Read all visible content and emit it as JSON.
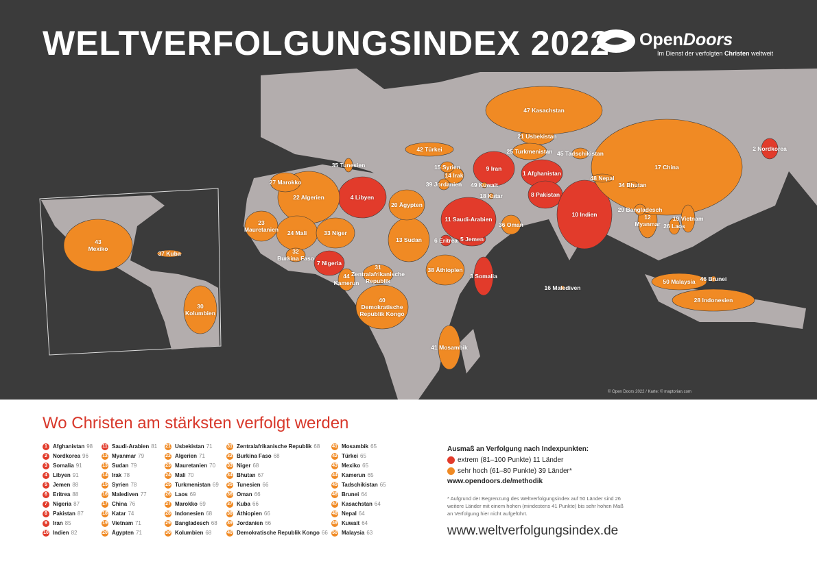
{
  "header": {
    "title": "WELTVERFOLGUNGSINDEX 2022",
    "logo": {
      "open": "Open",
      "doors": "Doors",
      "tagline": [
        "Im Dienst der verfolgten ",
        "Christen",
        " weltweit"
      ]
    }
  },
  "colors": {
    "extreme": "#e23b2b",
    "high": "#f08a24",
    "land": "#b3adad",
    "background": "#3b3b3b"
  },
  "map": {
    "copyright": "© Open Doors 2022 / Karte: © maptorian.com"
  },
  "subtitle": "Wo Christen am stärksten verfolgt werden",
  "ranking": [
    {
      "rank": 1,
      "name": "Afghanistan",
      "score": 98,
      "level": "extreme"
    },
    {
      "rank": 2,
      "name": "Nordkorea",
      "score": 96,
      "level": "extreme"
    },
    {
      "rank": 3,
      "name": "Somalia",
      "score": 91,
      "level": "extreme"
    },
    {
      "rank": 4,
      "name": "Libyen",
      "score": 91,
      "level": "extreme"
    },
    {
      "rank": 5,
      "name": "Jemen",
      "score": 88,
      "level": "extreme"
    },
    {
      "rank": 6,
      "name": "Eritrea",
      "score": 88,
      "level": "extreme"
    },
    {
      "rank": 7,
      "name": "Nigeria",
      "score": 87,
      "level": "extreme"
    },
    {
      "rank": 8,
      "name": "Pakistan",
      "score": 87,
      "level": "extreme"
    },
    {
      "rank": 9,
      "name": "Iran",
      "score": 85,
      "level": "extreme"
    },
    {
      "rank": 10,
      "name": "Indien",
      "score": 82,
      "level": "extreme"
    },
    {
      "rank": 11,
      "name": "Saudi-Arabien",
      "score": 81,
      "level": "extreme"
    },
    {
      "rank": 12,
      "name": "Myanmar",
      "score": 79,
      "level": "high"
    },
    {
      "rank": 13,
      "name": "Sudan",
      "score": 79,
      "level": "high"
    },
    {
      "rank": 14,
      "name": "Irak",
      "score": 78,
      "level": "high"
    },
    {
      "rank": 15,
      "name": "Syrien",
      "score": 78,
      "level": "high"
    },
    {
      "rank": 16,
      "name": "Malediven",
      "score": 77,
      "level": "high"
    },
    {
      "rank": 17,
      "name": "China",
      "score": 76,
      "level": "high"
    },
    {
      "rank": 18,
      "name": "Katar",
      "score": 74,
      "level": "high"
    },
    {
      "rank": 19,
      "name": "Vietnam",
      "score": 71,
      "level": "high"
    },
    {
      "rank": 20,
      "name": "Ägypten",
      "score": 71,
      "level": "high"
    },
    {
      "rank": 21,
      "name": "Usbekistan",
      "score": 71,
      "level": "high"
    },
    {
      "rank": 22,
      "name": "Algerien",
      "score": 71,
      "level": "high"
    },
    {
      "rank": 23,
      "name": "Mauretanien",
      "score": 70,
      "level": "high"
    },
    {
      "rank": 24,
      "name": "Mali",
      "score": 70,
      "level": "high"
    },
    {
      "rank": 25,
      "name": "Turkmenistan",
      "score": 69,
      "level": "high"
    },
    {
      "rank": 26,
      "name": "Laos",
      "score": 69,
      "level": "high"
    },
    {
      "rank": 27,
      "name": "Marokko",
      "score": 69,
      "level": "high"
    },
    {
      "rank": 28,
      "name": "Indonesien",
      "score": 68,
      "level": "high"
    },
    {
      "rank": 29,
      "name": "Bangladesch",
      "score": 68,
      "level": "high"
    },
    {
      "rank": 30,
      "name": "Kolumbien",
      "score": 68,
      "level": "high"
    },
    {
      "rank": 31,
      "name": "Zentralafrikanische Republik",
      "score": 68,
      "level": "high"
    },
    {
      "rank": 32,
      "name": "Burkina Faso",
      "score": 68,
      "level": "high"
    },
    {
      "rank": 33,
      "name": "Niger",
      "score": 68,
      "level": "high"
    },
    {
      "rank": 34,
      "name": "Bhutan",
      "score": 67,
      "level": "high"
    },
    {
      "rank": 35,
      "name": "Tunesien",
      "score": 66,
      "level": "high"
    },
    {
      "rank": 36,
      "name": "Oman",
      "score": 66,
      "level": "high"
    },
    {
      "rank": 37,
      "name": "Kuba",
      "score": 66,
      "level": "high"
    },
    {
      "rank": 38,
      "name": "Äthiopien",
      "score": 66,
      "level": "high"
    },
    {
      "rank": 39,
      "name": "Jordanien",
      "score": 66,
      "level": "high"
    },
    {
      "rank": 40,
      "name": "Demokratische Republik Kongo",
      "score": 66,
      "level": "high"
    },
    {
      "rank": 41,
      "name": "Mosambik",
      "score": 65,
      "level": "high"
    },
    {
      "rank": 42,
      "name": "Türkei",
      "score": 65,
      "level": "high"
    },
    {
      "rank": 43,
      "name": "Mexiko",
      "score": 65,
      "level": "high"
    },
    {
      "rank": 44,
      "name": "Kamerun",
      "score": 65,
      "level": "high"
    },
    {
      "rank": 45,
      "name": "Tadschikistan",
      "score": 65,
      "level": "high"
    },
    {
      "rank": 46,
      "name": "Brunei",
      "score": 64,
      "level": "high"
    },
    {
      "rank": 47,
      "name": "Kasachstan",
      "score": 64,
      "level": "high"
    },
    {
      "rank": 48,
      "name": "Nepal",
      "score": 64,
      "level": "high"
    },
    {
      "rank": 49,
      "name": "Kuwait",
      "score": 64,
      "level": "high"
    },
    {
      "rank": 50,
      "name": "Malaysia",
      "score": 63,
      "level": "high"
    }
  ],
  "legend": {
    "title": "Ausmaß an Verfolgung nach Indexpunkten:",
    "items": [
      {
        "level": "extreme",
        "label": "extrem (81–100 Punkte) 11 Länder"
      },
      {
        "level": "high",
        "label": "sehr hoch (61–80 Punkte) 39 Länder*"
      }
    ],
    "link": "www.opendoors.de/methodik",
    "footnote": "* Aufgrund der Begrenzung des Weltverfolgungsindex auf 50 Länder sind 26 weitere Länder mit einem hohen (mindestens 41 Punkte) bis sehr hohen Maß an Verfolgung hier nicht aufgeführt."
  },
  "website": "www.weltverfolgungsindex.de"
}
